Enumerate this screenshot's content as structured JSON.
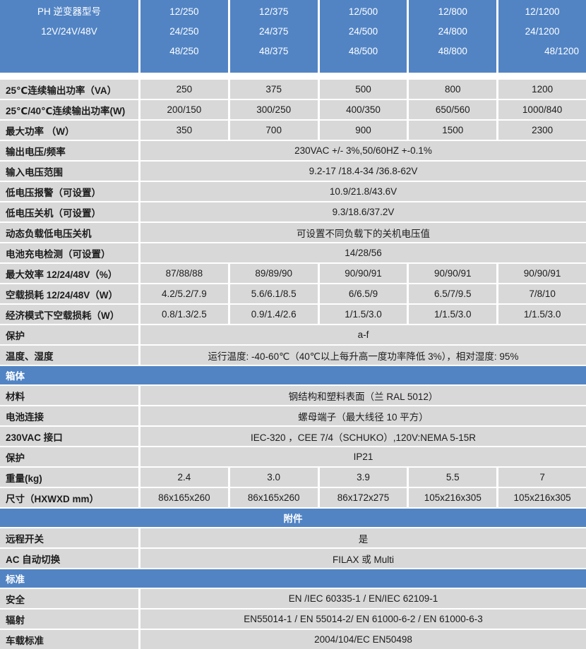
{
  "colors": {
    "header_blue": "#5284c4",
    "cell_gray": "#d8d8d8",
    "header_text": "#ffffff",
    "body_text": "#1c1c1c",
    "background": "#ffffff"
  },
  "model_header": {
    "label_line1": "PH 逆变器型号",
    "label_line2": "12V/24V/48V",
    "columns": [
      [
        "12/250",
        "24/250",
        "48/250"
      ],
      [
        "12/375",
        "24/375",
        "48/375"
      ],
      [
        "12/500",
        "24/500",
        "48/500"
      ],
      [
        "12/800",
        "24/800",
        "48/800"
      ],
      [
        "12/1200",
        "24/1200",
        "48/1200"
      ]
    ]
  },
  "rows": [
    {
      "label": "25℃连续输出功率（VA）",
      "values": [
        "250",
        "375",
        "500",
        "800",
        "1200"
      ]
    },
    {
      "label": "25℃/40℃连续输出功率(W)",
      "values": [
        "200/150",
        "300/250",
        "400/350",
        "650/560",
        "1000/840"
      ]
    },
    {
      "label": "最大功率 （W）",
      "values": [
        "350",
        "700",
        "900",
        "1500",
        "2300"
      ]
    },
    {
      "label": "输出电压/频率",
      "value": "230VAC +/- 3%,50/60HZ +-0.1%"
    },
    {
      "label": "输入电压范围",
      "value": "9.2-17 /18.4-34 /36.8-62V"
    },
    {
      "label": "低电压报警（可设置）",
      "value": "10.9/21.8/43.6V"
    },
    {
      "label": "低电压关机（可设置）",
      "value": "9.3/18.6/37.2V"
    },
    {
      "label": "动态负载低电压关机",
      "value": "可设置不同负载下的关机电压值"
    },
    {
      "label": "电池充电检测（可设置）",
      "value": "14/28/56"
    },
    {
      "label": "最大效率 12/24/48V（%）",
      "values": [
        "87/88/88",
        "89/89/90",
        "90/90/91",
        "90/90/91",
        "90/90/91"
      ]
    },
    {
      "label": "空载损耗 12/24/48V（W）",
      "values": [
        "4.2/5.2/7.9",
        "5.6/6.1/8.5",
        "6/6.5/9",
        "6.5/7/9.5",
        "7/8/10"
      ]
    },
    {
      "label": "经济模式下空载损耗（W）",
      "values": [
        "0.8/1.3/2.5",
        "0.9/1.4/2.6",
        "1/1.5/3.0",
        "1/1.5/3.0",
        "1/1.5/3.0"
      ]
    },
    {
      "label": "保护",
      "value": "a-f"
    },
    {
      "label": "温度、湿度",
      "value": "运行温度: -40-60℃（40℃以上每升高一度功率降低 3%），相对湿度: 95%"
    },
    {
      "label": "材料",
      "value": "钢结构和塑料表面（兰  RAL 5012）"
    },
    {
      "label": "电池连接",
      "value": "螺母端子（最大线径 10 平方）"
    },
    {
      "label": "230VAC 接口",
      "value": "IEC-320 ，CEE 7/4（SCHUKO）,120V:NEMA 5-15R"
    },
    {
      "label": "保护",
      "value": "IP21"
    },
    {
      "label": "重量(kg)",
      "values": [
        "2.4",
        "3.0",
        "3.9",
        "5.5",
        "7"
      ]
    },
    {
      "label": "尺寸（HXWXD mm）",
      "values": [
        "86x165x260",
        "86x165x260",
        "86x172x275",
        "105x216x305",
        "105x216x305"
      ]
    },
    {
      "label": "远程开关",
      "value": "是"
    },
    {
      "label": "AC 自动切换",
      "value": "FILAX 或 Multi"
    },
    {
      "label": "安全",
      "value": "EN /IEC 60335-1 / EN/IEC 62109-1"
    },
    {
      "label": "辐射",
      "value": "EN55014-1 / EN 55014-2/ EN 61000-6-2 / EN 61000-6-3"
    },
    {
      "label": "车载标准",
      "value": "2004/104/EC EN50498"
    }
  ],
  "sections": {
    "enclosure": {
      "title": "箱体"
    },
    "accessories": {
      "title": "附件"
    },
    "standards": {
      "title": "标准"
    }
  }
}
